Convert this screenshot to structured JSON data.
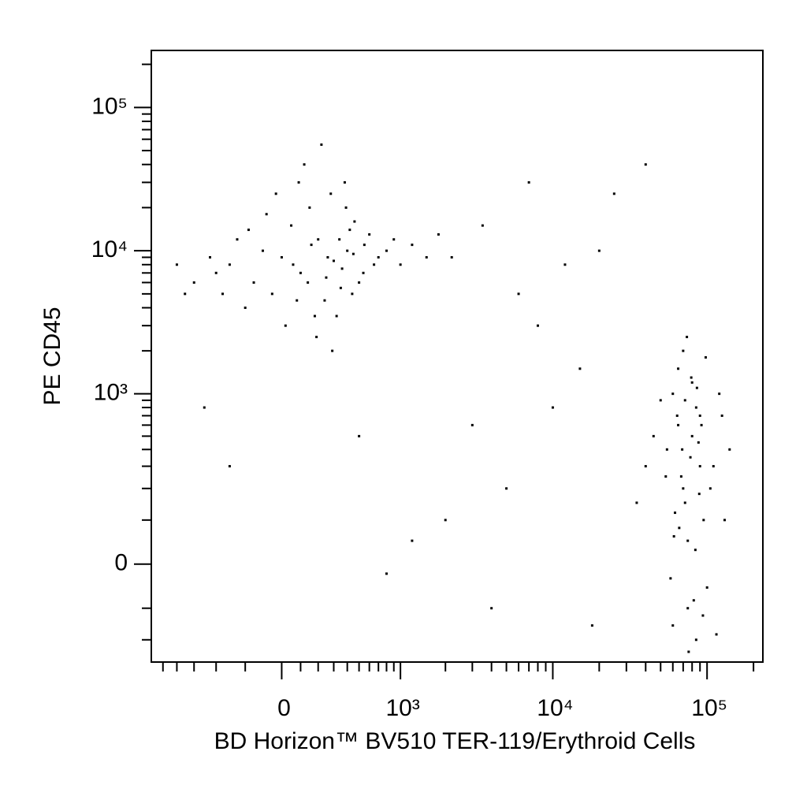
{
  "chart_data": {
    "type": "scatter",
    "x_label": "BD Horizon™ BV510 TER-119/Erythroid Cells",
    "y_label": "PE CD45",
    "xscale": "biexponential",
    "yscale": "biexponential",
    "color": "#000000",
    "xlim": [
      -1200,
      230000
    ],
    "ylim": [
      -300,
      250000
    ],
    "xticks": [
      0,
      {
        "value": 1000,
        "label": "10³"
      },
      {
        "value": 10000,
        "label": "10⁴"
      },
      {
        "value": 100000,
        "label": "10⁵"
      }
    ],
    "yticks": [
      0,
      {
        "value": 1000,
        "label": "10³"
      },
      {
        "value": 10000,
        "label": "10⁴"
      },
      {
        "value": 100000,
        "label": "10⁵"
      }
    ],
    "xminorticks": [
      -1000,
      -800,
      -600,
      -400,
      -200,
      100,
      200,
      300,
      400,
      500,
      600,
      700,
      800,
      900,
      2000,
      3000,
      4000,
      5000,
      6000,
      7000,
      8000,
      9000,
      20000,
      30000,
      40000,
      50000,
      60000,
      70000,
      80000,
      90000,
      200000
    ],
    "yminorticks": [
      -200,
      -100,
      100,
      200,
      300,
      400,
      500,
      600,
      700,
      800,
      900,
      2000,
      3000,
      4000,
      5000,
      6000,
      7000,
      8000,
      9000,
      20000,
      30000,
      40000,
      50000,
      60000,
      70000,
      80000,
      90000,
      200000
    ],
    "x": [
      -300,
      -150,
      0,
      100,
      200,
      300,
      400,
      -50,
      50,
      150,
      250,
      350,
      450,
      550,
      650,
      -400,
      -250,
      -100,
      80,
      180,
      280,
      380,
      -200,
      500,
      600,
      700,
      -350,
      -450,
      120,
      220,
      20,
      320,
      420,
      -80,
      160,
      260,
      360,
      460,
      -180,
      60,
      140,
      240,
      340,
      440,
      540,
      -600,
      -800,
      -700,
      800,
      900,
      1000,
      1200,
      1500,
      1800,
      2200,
      -30,
      90,
      190,
      290,
      390,
      70000,
      80000,
      60000,
      90000,
      75000,
      65000,
      85000,
      95000,
      55000,
      100000,
      70000,
      80000,
      60000,
      90000,
      75000,
      65000,
      85000,
      110000,
      50000,
      120000,
      72000,
      78000,
      68000,
      88000,
      82000,
      62000,
      92000,
      58000,
      98000,
      105000,
      45000,
      130000,
      74000,
      66000,
      86000,
      76000,
      64000,
      94000,
      54000,
      115000,
      72000,
      84000,
      69000,
      79000,
      89000,
      61000,
      125000,
      40000,
      140000,
      35000,
      3000,
      5000,
      10000,
      2000,
      8000,
      15000,
      500,
      -300,
      800,
      4000,
      6000,
      20000,
      12000,
      3500,
      7000,
      -500,
      1200,
      25000,
      40000,
      18000
    ],
    "y": [
      8000,
      6000,
      9000,
      7000,
      12000,
      8500,
      10000,
      5000,
      15000,
      20000,
      6500,
      5500,
      9500,
      11000,
      8000,
      7000,
      12000,
      10000,
      4500,
      3500,
      25000,
      30000,
      4000,
      6000,
      13000,
      9000,
      5000,
      9000,
      40000,
      55000,
      3000,
      3500,
      14000,
      18000,
      11000,
      9000,
      7500,
      16000,
      14000,
      8000,
      6000,
      4500,
      12000,
      5000,
      7000,
      6000,
      8000,
      5000,
      10000,
      12000,
      8000,
      11000,
      9000,
      13000,
      9000,
      25000,
      30000,
      2500,
      2000,
      20000,
      200,
      500,
      1000,
      300,
      -100,
      1500,
      800,
      100,
      400,
      -50,
      2000,
      1200,
      -150,
      700,
      50,
      600,
      -200,
      300,
      900,
      1000,
      150,
      350,
      250,
      450,
      -80,
      120,
      600,
      -30,
      1800,
      200,
      500,
      100,
      2500,
      80,
      1100,
      -250,
      700,
      -120,
      250,
      -180,
      900,
      30,
      400,
      1300,
      180,
      60,
      700,
      300,
      400,
      150,
      600,
      200,
      800,
      100,
      3000,
      1500,
      500,
      300,
      -20,
      -100,
      5000,
      10000,
      8000,
      15000,
      30000,
      800,
      50,
      25000,
      40000,
      -150
    ]
  }
}
